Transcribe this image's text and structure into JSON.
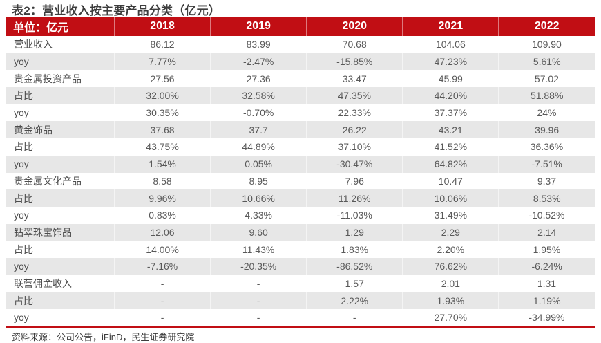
{
  "title": "表2：营业收入按主要产品分类（亿元）",
  "source": "资料来源：公司公告，iFinD，民生证券研究院",
  "colors": {
    "header_bg": "#C10E14",
    "header_text": "#FFFFFF",
    "alt_row_bg": "#E7E7E7",
    "cell_text": "#595959",
    "label_text": "#4D4D4D",
    "title_text": "#3D3D3D"
  },
  "table": {
    "unit_label": "单位：亿元",
    "years": [
      "2018",
      "2019",
      "2020",
      "2021",
      "2022"
    ],
    "rows": [
      {
        "label": "营业收入",
        "values": [
          "86.12",
          "83.99",
          "70.68",
          "104.06",
          "109.90"
        ]
      },
      {
        "label": "yoy",
        "values": [
          "7.77%",
          "-2.47%",
          "-15.85%",
          "47.23%",
          "5.61%"
        ]
      },
      {
        "label": "贵金属投资产品",
        "values": [
          "27.56",
          "27.36",
          "33.47",
          "45.99",
          "57.02"
        ]
      },
      {
        "label": "占比",
        "values": [
          "32.00%",
          "32.58%",
          "47.35%",
          "44.20%",
          "51.88%"
        ]
      },
      {
        "label": "yoy",
        "values": [
          "30.35%",
          "-0.70%",
          "22.33%",
          "37.37%",
          "24%"
        ]
      },
      {
        "label": "黄金饰品",
        "values": [
          "37.68",
          "37.7",
          "26.22",
          "43.21",
          "39.96"
        ]
      },
      {
        "label": "占比",
        "values": [
          "43.75%",
          "44.89%",
          "37.10%",
          "41.52%",
          "36.36%"
        ]
      },
      {
        "label": "yoy",
        "values": [
          "1.54%",
          "0.05%",
          "-30.47%",
          "64.82%",
          "-7.51%"
        ]
      },
      {
        "label": "贵金属文化产品",
        "values": [
          "8.58",
          "8.95",
          "7.96",
          "10.47",
          "9.37"
        ]
      },
      {
        "label": "占比",
        "values": [
          "9.96%",
          "10.66%",
          "11.26%",
          "10.06%",
          "8.53%"
        ]
      },
      {
        "label": "yoy",
        "values": [
          "0.83%",
          "4.33%",
          "-11.03%",
          "31.49%",
          "-10.52%"
        ]
      },
      {
        "label": "钻翠珠宝饰品",
        "values": [
          "12.06",
          "9.60",
          "1.29",
          "2.29",
          "2.14"
        ]
      },
      {
        "label": "占比",
        "values": [
          "14.00%",
          "11.43%",
          "1.83%",
          "2.20%",
          "1.95%"
        ]
      },
      {
        "label": "yoy",
        "values": [
          "-7.16%",
          "-20.35%",
          "-86.52%",
          "76.62%",
          "-6.24%"
        ]
      },
      {
        "label": "联营佣金收入",
        "values": [
          "-",
          "-",
          "1.57",
          "2.01",
          "1.31"
        ]
      },
      {
        "label": "占比",
        "values": [
          "-",
          "-",
          "2.22%",
          "1.93%",
          "1.19%"
        ]
      },
      {
        "label": "yoy",
        "values": [
          "-",
          "-",
          "-",
          "27.70%",
          "-34.99%"
        ]
      }
    ]
  }
}
